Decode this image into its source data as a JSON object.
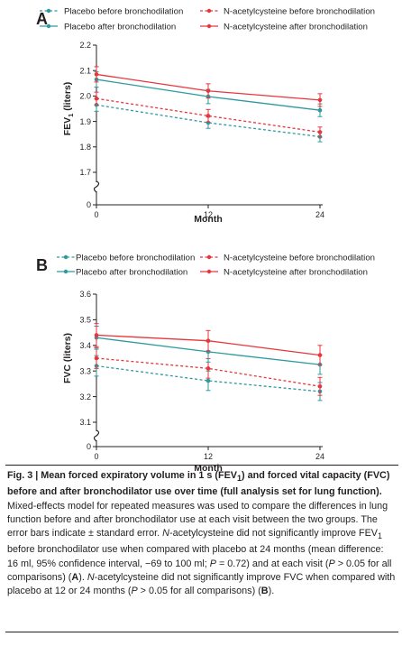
{
  "colors": {
    "placebo": "#2c9aa0",
    "nac": "#e8363d",
    "axis": "#231f20"
  },
  "chart_data": [
    {
      "panel_label": "A",
      "type": "line",
      "xlabel": "Month",
      "ylabel_main": "FEV",
      "ylabel_sub": "1",
      "ylabel_unit": " (liters)",
      "x": [
        0,
        12,
        24
      ],
      "x_ticks": [
        "0",
        "12",
        "24"
      ],
      "y_ticks": [
        "0",
        "1.7",
        "1.8",
        "1.9",
        "2.0",
        "2.1",
        "2.2"
      ],
      "ylim": [
        1.7,
        2.2
      ],
      "axis_break": true,
      "legend_position": "top",
      "series": [
        {
          "name": "Placebo before bronchodilation",
          "style": "dashed",
          "color": "#2c9aa0",
          "values": [
            1.965,
            1.895,
            1.84
          ],
          "errors": [
            0.025,
            0.022,
            0.02
          ]
        },
        {
          "name": "N-acetylcysteine before bronchodilation",
          "style": "dashed",
          "color": "#e8363d",
          "values": [
            1.99,
            1.922,
            1.858
          ],
          "errors": [
            0.025,
            0.025,
            0.02
          ]
        },
        {
          "name": "Placebo after bronchodilation",
          "style": "solid",
          "color": "#2c9aa0",
          "values": [
            2.065,
            1.998,
            1.944
          ],
          "errors": [
            0.03,
            0.028,
            0.025
          ]
        },
        {
          "name": "N-acetylcysteine after bronchodilation",
          "style": "solid",
          "color": "#e8363d",
          "values": [
            2.085,
            2.02,
            1.984
          ],
          "errors": [
            0.03,
            0.028,
            0.025
          ]
        }
      ]
    },
    {
      "panel_label": "B",
      "type": "line",
      "xlabel": "Month",
      "ylabel_main": "FVC (liters)",
      "ylabel_sub": "",
      "ylabel_unit": "",
      "x": [
        0,
        12,
        24
      ],
      "x_ticks": [
        "0",
        "12",
        "24"
      ],
      "y_ticks": [
        "0",
        "3.1",
        "3.2",
        "3.3",
        "3.4",
        "3.5",
        "3.6"
      ],
      "ylim": [
        3.1,
        3.6
      ],
      "axis_break": true,
      "legend_position": "top",
      "series": [
        {
          "name": "Placebo before bronchodilation",
          "style": "dashed",
          "color": "#2c9aa0",
          "values": [
            3.32,
            3.262,
            3.22
          ],
          "errors": [
            0.04,
            0.038,
            0.035
          ]
        },
        {
          "name": "N-acetylcysteine before bronchodilation",
          "style": "dashed",
          "color": "#e8363d",
          "values": [
            3.35,
            3.31,
            3.24
          ],
          "errors": [
            0.04,
            0.038,
            0.035
          ]
        },
        {
          "name": "Placebo after bronchodilation",
          "style": "solid",
          "color": "#2c9aa0",
          "values": [
            3.43,
            3.375,
            3.325
          ],
          "errors": [
            0.045,
            0.04,
            0.038
          ]
        },
        {
          "name": "N-acetylcysteine after bronchodilation",
          "style": "solid",
          "color": "#e8363d",
          "values": [
            3.44,
            3.418,
            3.362
          ],
          "errors": [
            0.045,
            0.04,
            0.038
          ]
        }
      ]
    }
  ],
  "caption": {
    "bold_a": "Fig. 3 | Mean forced expiratory volume in 1 s (FEV",
    "bold_a_sub": "1",
    "bold_b": ") and forced vital capacity (FVC) before and after bronchodilator use over time (full analysis set for lung function).",
    "t1": " Mixed-effects model for repeated measures was used to compare the differences in lung function before and after bronchodilator use at each visit between the two groups. The error bars indicate ± standard error. ",
    "i1": "N",
    "t2": "-acetylcysteine did not significantly improve FEV",
    "t2_sub": "1",
    "t3": " before bronchodilator use when compared with placebo at 24 months (mean difference: 16 ml, 95% confidence interval, −69 to 100 ml; ",
    "i2": "P",
    "t4": " = 0.72) and at each visit (",
    "i3": "P",
    "t5": " > 0.05 for all comparisons) (",
    "b1": "A",
    "t6": "). ",
    "i4": "N",
    "t7": "-acetylcysteine did not significantly improve FVC when compared with placebo at 12 or 24 months (",
    "i5": "P",
    "t8": " > 0.05 for all comparisons) (",
    "b2": "B",
    "t9": ")."
  }
}
